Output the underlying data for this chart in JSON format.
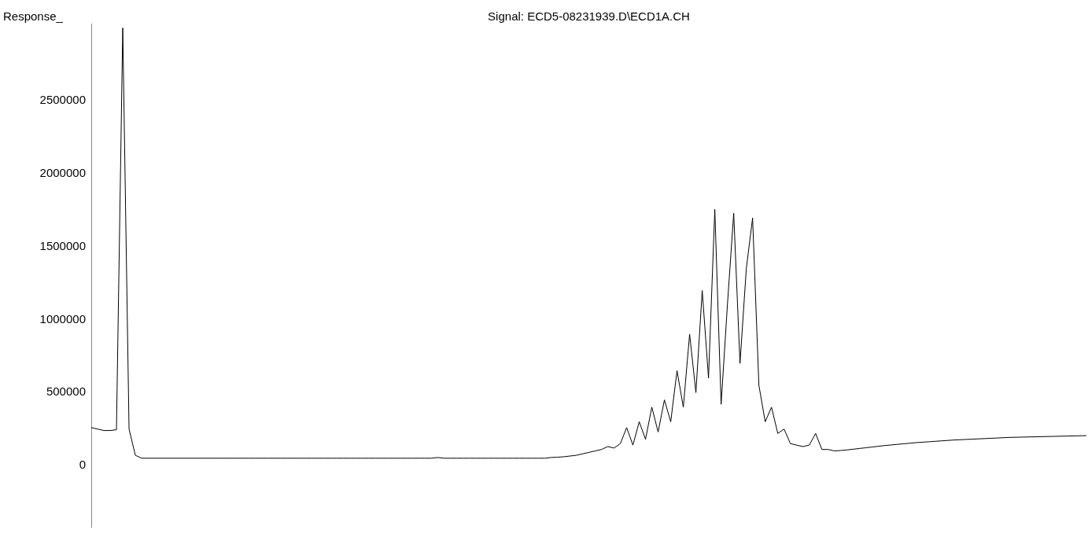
{
  "chart_data": {
    "type": "line",
    "title": "Signal: ECD5-08231939.D\\ECD1A.CH",
    "ylabel": "Response_",
    "categories": [
      null,
      null,
      null,
      null,
      null,
      null,
      null,
      null,
      null,
      null,
      null,
      null,
      null,
      null,
      null,
      null,
      null,
      null,
      null,
      null,
      null,
      null,
      null,
      null,
      null,
      null,
      null,
      null,
      null,
      null,
      null,
      null,
      null,
      null,
      null,
      null,
      null,
      null,
      null,
      null,
      null,
      null,
      null,
      null,
      null,
      null,
      null,
      null,
      null,
      null,
      null,
      null,
      null,
      null,
      null,
      null,
      null,
      null,
      null,
      null,
      null,
      null,
      null,
      null,
      null,
      null,
      null,
      null,
      null,
      null,
      null,
      null,
      null,
      null,
      null,
      null,
      null,
      null,
      null,
      null,
      null,
      null,
      null,
      null,
      null,
      null,
      null,
      null,
      null,
      null,
      null,
      null,
      null,
      null,
      null,
      null,
      null,
      null,
      null,
      null,
      null,
      null,
      null,
      null,
      null,
      null,
      null,
      null,
      null,
      null,
      null,
      null,
      null,
      null,
      null,
      null,
      null,
      null,
      null,
      null,
      null,
      null,
      null,
      null,
      null,
      null,
      null,
      null,
      null,
      null,
      null,
      null,
      null,
      null,
      null,
      null,
      null,
      null,
      null,
      null,
      null,
      null,
      null,
      null,
      null,
      null,
      null,
      null,
      null,
      null,
      null,
      null,
      null,
      null,
      null,
      null,
      null,
      null,
      null
    ],
    "series": [
      {
        "color": "#000000",
        "values": [
          260000,
          250000,
          240000,
          240000,
          245000,
          3000000,
          250000,
          70000,
          50000,
          50000,
          50000,
          50000,
          50000,
          50000,
          50000,
          50000,
          50000,
          50000,
          50000,
          50000,
          50000,
          50000,
          50000,
          50000,
          50000,
          50000,
          50000,
          50000,
          50000,
          50000,
          50000,
          50000,
          50000,
          50000,
          50000,
          50000,
          50000,
          50000,
          50000,
          50000,
          50000,
          50000,
          50000,
          50000,
          50000,
          50000,
          50000,
          50000,
          50000,
          50000,
          50000,
          50000,
          50000,
          50000,
          50000,
          55000,
          50000,
          50000,
          50000,
          50000,
          50000,
          50000,
          50000,
          50000,
          50000,
          50000,
          50000,
          50000,
          50000,
          50000,
          50000,
          50000,
          50000,
          55000,
          57000,
          60000,
          65000,
          70000,
          80000,
          90000,
          100000,
          110000,
          130000,
          120000,
          150000,
          260000,
          140000,
          300000,
          180000,
          400000,
          230000,
          450000,
          300000,
          650000,
          400000,
          900000,
          500000,
          1200000,
          600000,
          1756000,
          420000,
          1100000,
          1730000,
          700000,
          1350000,
          1697000,
          550000,
          300000,
          400000,
          220000,
          250000,
          150000,
          140000,
          130000,
          140000,
          220000,
          110000,
          110000,
          100000,
          103000,
          107000,
          112000,
          117000,
          122000,
          127000,
          132000,
          137000,
          141000,
          145000,
          149000,
          153000,
          157000,
          160000,
          163000,
          166000,
          169000,
          172000,
          175000,
          177000,
          179000,
          181000,
          183000,
          185000,
          187000,
          189000,
          191000,
          193000,
          194000,
          195000,
          196000,
          197000,
          198000,
          199000,
          200000,
          201000,
          202000,
          203000,
          204000,
          205000
        ]
      }
    ],
    "ylim": [
      -420000,
      3030000
    ],
    "yticks": [
      0,
      500000,
      1000000,
      1500000,
      2000000,
      2500000
    ],
    "tick_labels": "y",
    "legend": false,
    "grid": false,
    "marker": "none",
    "line_style": "solid"
  }
}
